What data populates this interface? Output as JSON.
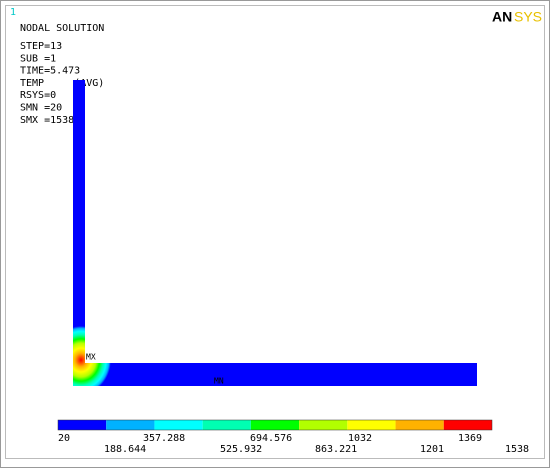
{
  "window_number": "1",
  "title": "NODAL SOLUTION",
  "info": [
    "STEP=13",
    "SUB =1",
    "TIME=5.473",
    "TEMP     (AVG)",
    "RSYS=0",
    "SMN =20",
    "SMX =1538"
  ],
  "logo": {
    "left": "AN",
    "right": "SYS"
  },
  "markers": {
    "max": "MX",
    "min": "MN"
  },
  "legend": {
    "colors": [
      "#0000ff",
      "#00b2ff",
      "#00ffff",
      "#00ffb2",
      "#00ff00",
      "#b2ff00",
      "#ffff00",
      "#ffb200",
      "#ff0000"
    ],
    "labels": [
      "20",
      "188.644",
      "357.288",
      "525.932",
      "694.576",
      "863.221",
      "1032",
      "1201",
      "1369",
      "1538"
    ]
  }
}
